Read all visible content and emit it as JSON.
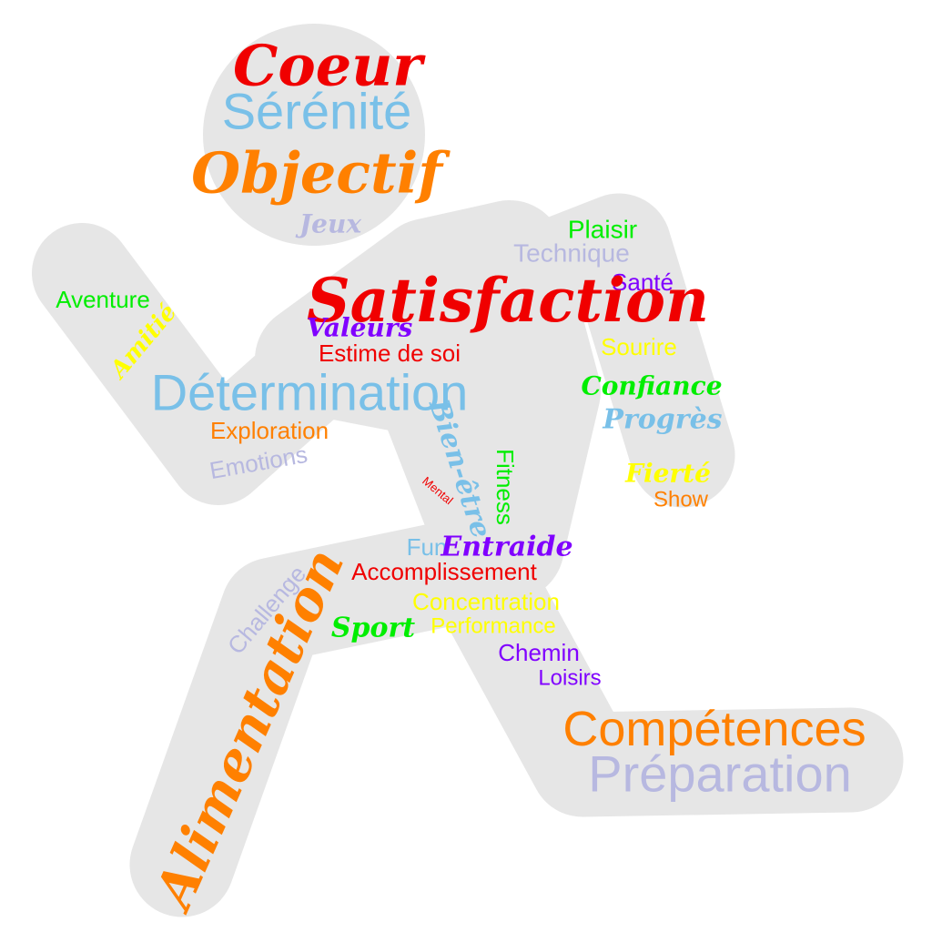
{
  "shape": {
    "name": "runner-silhouette",
    "fill": "#e6e6e6"
  },
  "palette": {
    "red": "#f00000",
    "blue": "#79c0e8",
    "orange": "#ff8000",
    "lavender": "#b7b8e0",
    "green": "#00ee00",
    "purple": "#8000ff",
    "yellow": "#ffff00"
  },
  "words": [
    {
      "text": "Coeur",
      "color": "red"
    },
    {
      "text": "Sérénité",
      "color": "blue"
    },
    {
      "text": "Objectif",
      "color": "orange"
    },
    {
      "text": "Jeux",
      "color": "lavender"
    },
    {
      "text": "Plaisir",
      "color": "green"
    },
    {
      "text": "Technique",
      "color": "lavender"
    },
    {
      "text": "Santé",
      "color": "purple"
    },
    {
      "text": "Satisfaction",
      "color": "red"
    },
    {
      "text": "Aventure",
      "color": "green"
    },
    {
      "text": "Amitié",
      "color": "yellow"
    },
    {
      "text": "Valeurs",
      "color": "purple"
    },
    {
      "text": "Estime de soi",
      "color": "red"
    },
    {
      "text": "Sourire",
      "color": "yellow"
    },
    {
      "text": "Détermination",
      "color": "blue"
    },
    {
      "text": "Confiance",
      "color": "green"
    },
    {
      "text": "Progrès",
      "color": "blue"
    },
    {
      "text": "Exploration",
      "color": "orange"
    },
    {
      "text": "Emotions",
      "color": "lavender"
    },
    {
      "text": "Bien-être",
      "color": "blue"
    },
    {
      "text": "Fitness",
      "color": "green"
    },
    {
      "text": "Fierté",
      "color": "yellow"
    },
    {
      "text": "Mental",
      "color": "red"
    },
    {
      "text": "Show",
      "color": "orange"
    },
    {
      "text": "Fun",
      "color": "blue"
    },
    {
      "text": "Entraide",
      "color": "purple"
    },
    {
      "text": "Challenge",
      "color": "lavender"
    },
    {
      "text": "Accomplissement",
      "color": "red"
    },
    {
      "text": "Alimentation",
      "color": "orange"
    },
    {
      "text": "Concentration",
      "color": "yellow"
    },
    {
      "text": "Sport",
      "color": "green"
    },
    {
      "text": "Performance",
      "color": "yellow"
    },
    {
      "text": "Chemin",
      "color": "purple"
    },
    {
      "text": "Loisirs",
      "color": "purple"
    },
    {
      "text": "Compétences",
      "color": "orange"
    },
    {
      "text": "Préparation",
      "color": "lavender"
    }
  ]
}
